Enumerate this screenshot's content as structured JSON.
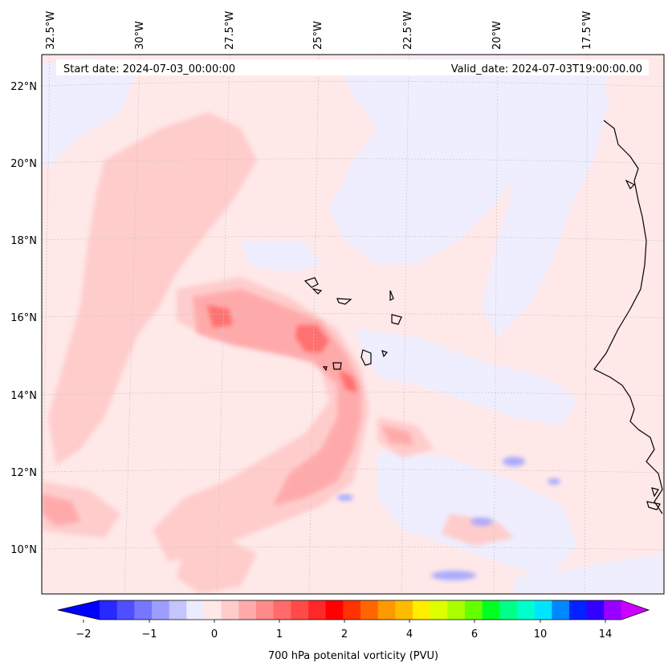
{
  "header": {
    "start_date": "Start date: 2024-07-03_00:00:00",
    "valid_date": "Valid_date: 2024-07-03T19:00:00.00"
  },
  "axes": {
    "top_lon_labels": [
      "32.5°W",
      "30°W",
      "27.5°W",
      "25°W",
      "22.5°W",
      "20°W",
      "17.5°W"
    ],
    "left_lat_labels": [
      "22°N",
      "20°N",
      "18°N",
      "16°N",
      "14°N",
      "12°N",
      "10°N"
    ]
  },
  "colorbar": {
    "label": "700 hPa potenital vorticity (PVU)",
    "tick_labels": [
      "−2",
      "−1",
      "0",
      "1",
      "2",
      "4",
      "6",
      "10",
      "14"
    ],
    "colors": [
      "#0000ff",
      "#2828ff",
      "#4f4fff",
      "#7676ff",
      "#9d9dff",
      "#c4c4ff",
      "#ececff",
      "#ffe8e8",
      "#ffcccc",
      "#ffaaaa",
      "#ff8a8a",
      "#ff6a6a",
      "#ff4a4a",
      "#ff2828",
      "#ff0000",
      "#ff3300",
      "#ff6600",
      "#ff9900",
      "#ffbb00",
      "#ffee00",
      "#ddff00",
      "#aaff00",
      "#66ff00",
      "#00ff22",
      "#00ff88",
      "#00ffcc",
      "#00e5ff",
      "#0088ff",
      "#0022ff",
      "#3300ff",
      "#9900ff",
      "#cc00ff"
    ]
  },
  "map": {
    "background_color": "#ffe8e8",
    "coastline_color": "#000000"
  }
}
